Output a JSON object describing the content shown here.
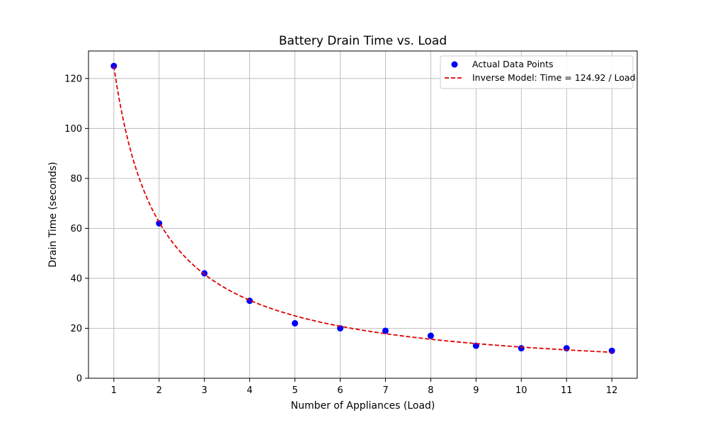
{
  "chart_data": {
    "type": "scatter",
    "title": "Battery Drain Time vs. Load",
    "xlabel": "Number of Appliances (Load)",
    "ylabel": "Drain Time (seconds)",
    "xlim": [
      0.44,
      12.56
    ],
    "ylim": [
      0,
      131
    ],
    "xticks": [
      1,
      2,
      3,
      4,
      5,
      6,
      7,
      8,
      9,
      10,
      11,
      12
    ],
    "yticks": [
      0,
      20,
      40,
      60,
      80,
      100,
      120
    ],
    "grid": true,
    "legend_position": "top-right",
    "series": [
      {
        "name": "Actual Data Points",
        "kind": "scatter",
        "color": "#0000ff",
        "x": [
          1,
          2,
          3,
          4,
          5,
          6,
          7,
          8,
          9,
          10,
          11,
          12
        ],
        "y": [
          125,
          62,
          42,
          31,
          22,
          20,
          19,
          17,
          13,
          12,
          12,
          11
        ]
      },
      {
        "name": "Inverse Model: Time = 124.92 / Load",
        "kind": "line",
        "style": "dashed",
        "color": "#e00000",
        "coefficient": 124.92,
        "x_range": [
          1,
          12
        ]
      }
    ]
  }
}
